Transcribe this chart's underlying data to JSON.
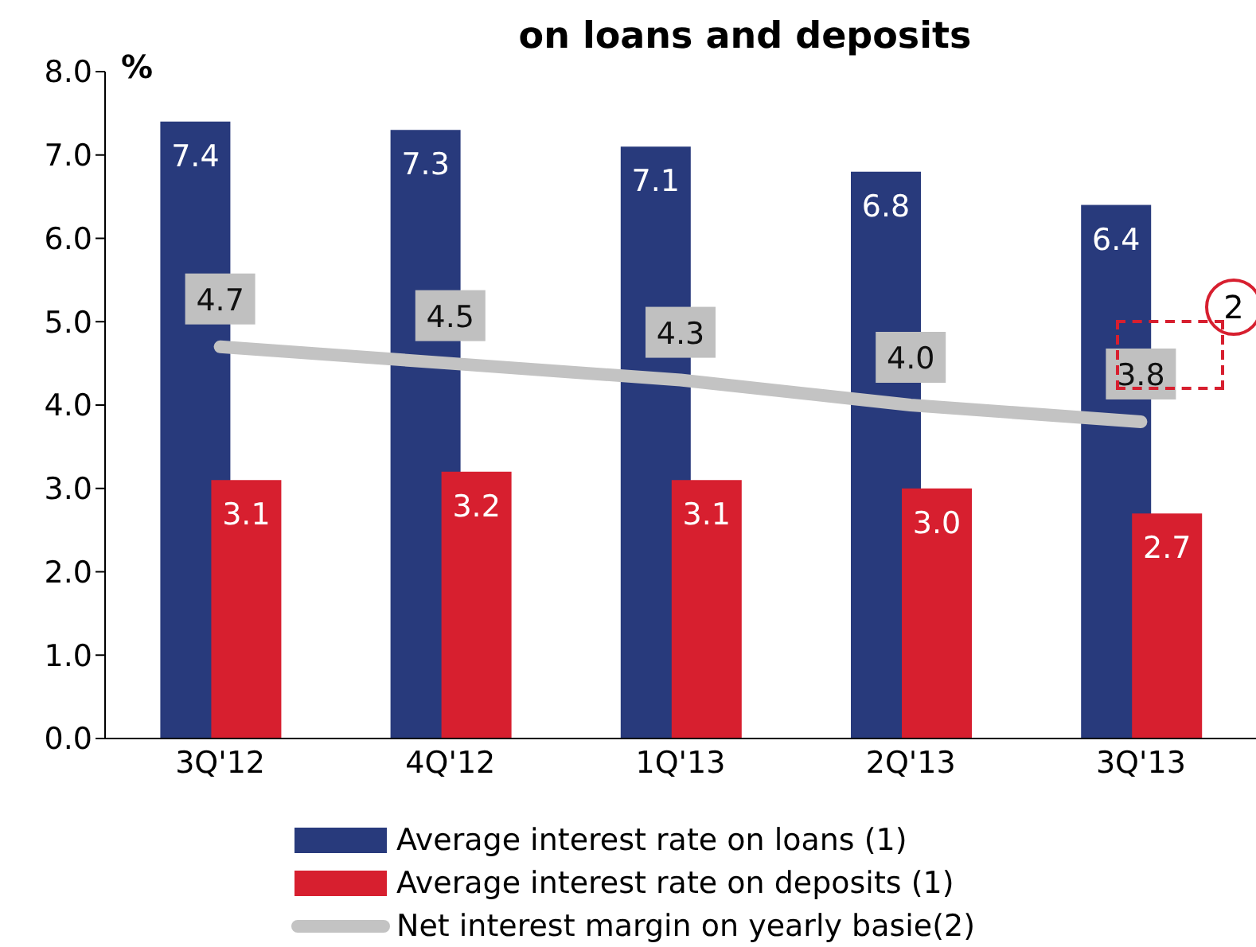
{
  "chart_data": {
    "type": "bar",
    "title": "on loans and deposits",
    "ylabel": "%",
    "categories": [
      "3Q'12",
      "4Q'12",
      "1Q'13",
      "2Q'13",
      "3Q'13"
    ],
    "series": [
      {
        "name": "Average interest rate on loans (1)",
        "color": "#283a7c",
        "values": [
          7.4,
          7.3,
          7.1,
          6.8,
          6.4
        ],
        "value_labels": [
          "7.4",
          "7.3",
          "7.1",
          "6.8",
          "6.4"
        ]
      },
      {
        "name": "Average interest rate on deposits (1)",
        "color": "#d71f2f",
        "values": [
          3.1,
          3.2,
          3.1,
          3.0,
          2.7
        ],
        "value_labels": [
          "3.1",
          "3.2",
          "3.1",
          "3.0",
          "2.7"
        ]
      },
      {
        "name": "Net interest margin on yearly basie(2)",
        "type": "line",
        "color": "#c3c3c3",
        "values": [
          4.7,
          4.5,
          4.3,
          4.0,
          3.8
        ],
        "value_labels": [
          "4.7",
          "4.5",
          "4.3",
          "4.0",
          "3.8"
        ],
        "marker": "none"
      }
    ],
    "ylim": [
      0,
      8
    ],
    "yticks": [
      {
        "value": 0,
        "label": "0.0"
      },
      {
        "value": 1,
        "label": "1.0"
      },
      {
        "value": 2,
        "label": "2.0"
      },
      {
        "value": 3,
        "label": "3.0"
      },
      {
        "value": 4,
        "label": "4.0"
      },
      {
        "value": 5,
        "label": "5.0"
      },
      {
        "value": 6,
        "label": "6.0"
      },
      {
        "value": 7,
        "label": "7.0"
      },
      {
        "value": 8,
        "label": "8.0"
      }
    ],
    "grid": false,
    "legend": "bottom",
    "annotations": [
      "2"
    ]
  }
}
